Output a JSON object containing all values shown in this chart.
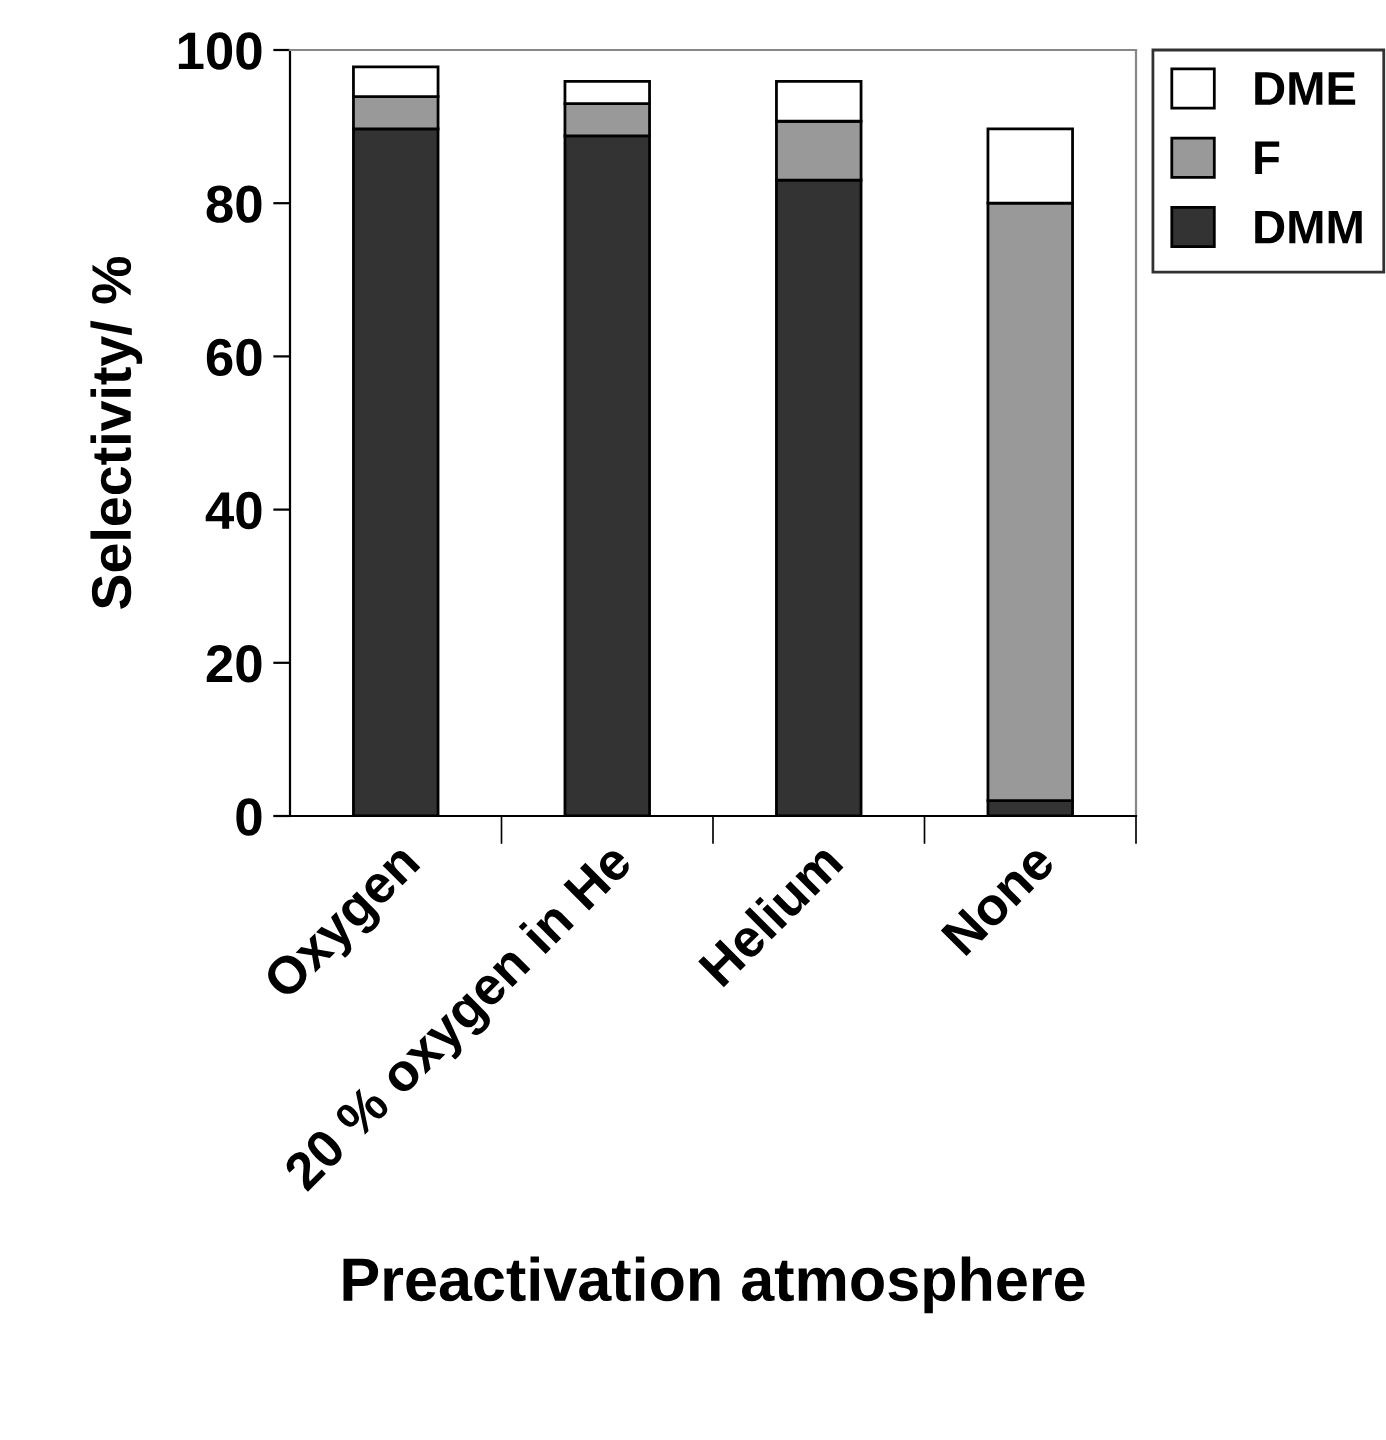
{
  "chart_data": {
    "type": "bar",
    "stacked": true,
    "xlabel": "Preactivation atmosphere",
    "ylabel": "Selectivity/ %",
    "categories": [
      "Oxygen",
      "20 % oxygen in He",
      "Helium",
      "None"
    ],
    "series": [
      {
        "name": "DMM",
        "color": "#333333",
        "values": [
          89.7,
          88.8,
          83.0,
          2.0
        ]
      },
      {
        "name": "F",
        "color": "#999999",
        "values": [
          4.2,
          4.2,
          7.7,
          78.0
        ]
      },
      {
        "name": "DME",
        "color": "#ffffff",
        "values": [
          3.9,
          2.9,
          5.2,
          9.7
        ]
      }
    ],
    "ylim": [
      0,
      100
    ],
    "yticks": [
      0,
      20,
      40,
      60,
      80,
      100
    ],
    "grid": false,
    "legend": "top right"
  }
}
